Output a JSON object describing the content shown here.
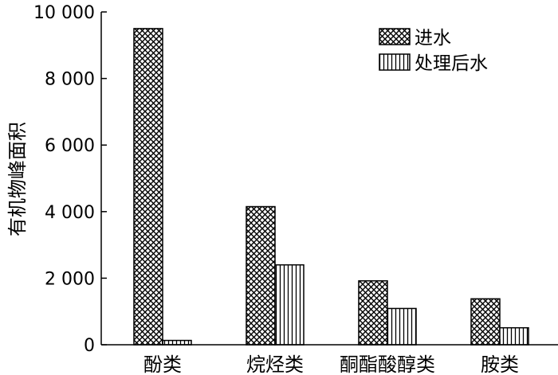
{
  "chart_data": {
    "type": "bar",
    "title": "",
    "xlabel": "",
    "ylabel": "有机物峰面积",
    "ylim": [
      0,
      10000
    ],
    "yticks": [
      0,
      2000,
      4000,
      6000,
      8000,
      10000
    ],
    "ytick_labels": [
      "0",
      "2 000",
      "4 000",
      "6 000",
      "8 000",
      "10 000"
    ],
    "categories": [
      "酚类",
      "烷烃类",
      "酮酯酸醇类",
      "胺类"
    ],
    "series": [
      {
        "name": "进水",
        "pattern": "crosshatch",
        "values": [
          9500,
          4150,
          1920,
          1380
        ]
      },
      {
        "name": "处理后水",
        "pattern": "vertical-lines",
        "values": [
          130,
          2400,
          1090,
          510
        ]
      }
    ],
    "grid": false,
    "legend_position": "top-right"
  }
}
